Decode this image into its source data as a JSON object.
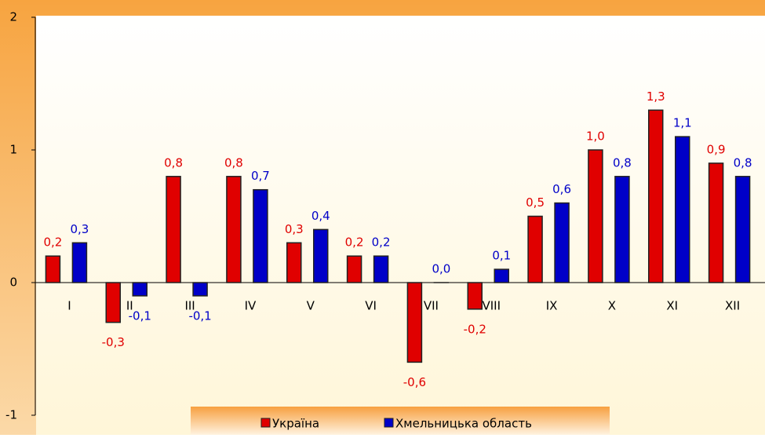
{
  "chart_data": {
    "type": "bar",
    "categories": [
      "I",
      "II",
      "III",
      "IV",
      "V",
      "VI",
      "VII",
      "VIII",
      "IX",
      "X",
      "XI",
      "XII"
    ],
    "series": [
      {
        "name": "Україна",
        "color": "#e00000",
        "values": [
          0.2,
          -0.3,
          0.8,
          0.8,
          0.3,
          0.2,
          -0.6,
          -0.2,
          0.5,
          1.0,
          1.3,
          0.9
        ],
        "value_labels": [
          "0,2",
          "-0,3",
          "0,8",
          "0,8",
          "0,3",
          "0,2",
          "-0,6",
          "-0,2",
          "0,5",
          "1,0",
          "1,3",
          "0,9"
        ]
      },
      {
        "name": "Хмельницька область",
        "color": "#0000c8",
        "values": [
          0.3,
          -0.1,
          -0.1,
          0.7,
          0.4,
          0.2,
          0.0,
          0.1,
          0.6,
          0.8,
          1.1,
          0.8
        ],
        "value_labels": [
          "0,3",
          "-0,1",
          "-0,1",
          "0,7",
          "0,4",
          "0,2",
          "0,0",
          "0,1",
          "0,6",
          "0,8",
          "1,1",
          "0,8"
        ]
      }
    ],
    "ylim": [
      -1,
      2
    ],
    "yticks": [
      2,
      1,
      0,
      -1
    ],
    "grid": false,
    "legend": "bottom"
  }
}
